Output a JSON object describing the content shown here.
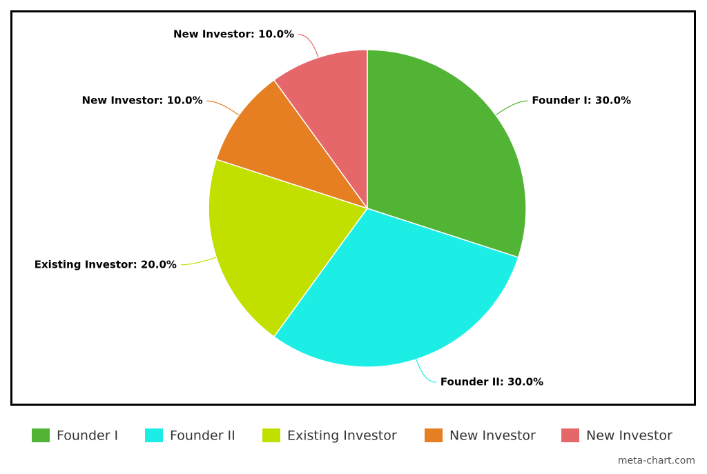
{
  "chart_data": {
    "type": "pie",
    "categories": [
      "Founder I",
      "Founder II",
      "Existing Investor",
      "New Investor",
      "New Investor"
    ],
    "values": [
      30,
      30,
      20,
      10,
      10
    ],
    "value_labels": [
      "Founder I: 30.0%",
      "Founder II: 30.0%",
      "Existing Investor: 20.0%",
      "New Investor: 10.0%",
      "New Investor: 10.0%"
    ],
    "colors": [
      "#52b435",
      "#1ceee6",
      "#c2e000",
      "#e67e22",
      "#e5676a"
    ],
    "legend": "bottom",
    "credit": "meta-chart.com"
  }
}
